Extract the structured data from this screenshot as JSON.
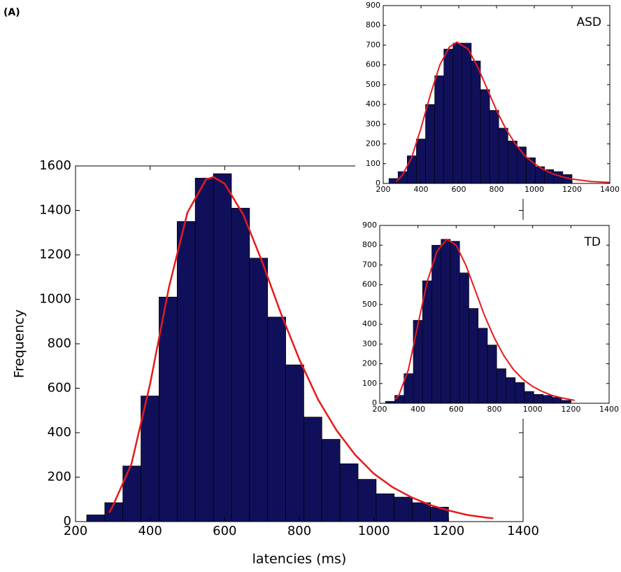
{
  "chart_data": [
    {
      "type": "histogram",
      "panel_label": "(A)",
      "xlabel": "latencies (ms)",
      "ylabel": "Frequency",
      "bins": [
        230,
        278.5,
        327,
        375.5,
        424,
        472.5,
        521,
        569.5,
        618,
        666.5,
        715,
        763.5,
        812,
        860.5,
        909,
        957.5,
        1006,
        1054.5,
        1103,
        1151.5,
        1200
      ],
      "values": [
        30,
        85,
        250,
        565,
        1010,
        1350,
        1545,
        1565,
        1410,
        1185,
        920,
        705,
        470,
        370,
        260,
        190,
        125,
        110,
        85,
        65
      ],
      "color": "#10105a",
      "fit": {
        "color": "#e8191c",
        "x": [
          290,
          300,
          350,
          400,
          450,
          500,
          550,
          570,
          600,
          650,
          700,
          750,
          800,
          850,
          900,
          950,
          1000,
          1050,
          1100,
          1150,
          1200,
          1250,
          1300,
          1320
        ],
        "values": [
          40,
          70,
          260,
          620,
          1050,
          1390,
          1540,
          1550,
          1520,
          1380,
          1170,
          940,
          730,
          550,
          410,
          300,
          215,
          155,
          110,
          75,
          50,
          30,
          18,
          15
        ]
      },
      "xlim": [
        200,
        1400
      ],
      "xticks": [
        200,
        400,
        600,
        800,
        1000,
        1200,
        1400
      ],
      "ylim": [
        0,
        1600
      ],
      "yticks": [
        0,
        200,
        400,
        600,
        800,
        1000,
        1200,
        1400,
        1600
      ]
    },
    {
      "type": "histogram",
      "annotation": "ASD",
      "bins": [
        230,
        278.5,
        327,
        375.5,
        424,
        472.5,
        521,
        569.5,
        618,
        666.5,
        715,
        763.5,
        812,
        860.5,
        909,
        957.5,
        1006,
        1054.5,
        1103,
        1151.5,
        1200
      ],
      "values": [
        25,
        60,
        140,
        225,
        400,
        545,
        680,
        710,
        710,
        620,
        475,
        370,
        280,
        215,
        185,
        130,
        85,
        70,
        60,
        45
      ],
      "color": "#10105a",
      "fit": {
        "color": "#e8191c",
        "x": [
          270,
          300,
          350,
          400,
          450,
          500,
          550,
          590,
          650,
          700,
          750,
          800,
          850,
          900,
          950,
          1000,
          1050,
          1100,
          1150,
          1200,
          1300,
          1400
        ],
        "values": [
          10,
          40,
          130,
          280,
          450,
          600,
          690,
          715,
          680,
          590,
          480,
          370,
          275,
          200,
          140,
          100,
          70,
          48,
          33,
          22,
          10,
          5
        ]
      },
      "xlim": [
        200,
        1400
      ],
      "xticks": [
        200,
        400,
        600,
        800,
        1000,
        1200,
        1400
      ],
      "ylim": [
        0,
        900
      ],
      "yticks": [
        0,
        100,
        200,
        300,
        400,
        500,
        600,
        700,
        800,
        900
      ]
    },
    {
      "type": "histogram",
      "annotation": "TD",
      "bins": [
        230,
        278.5,
        327,
        375.5,
        424,
        472.5,
        521,
        569.5,
        618,
        666.5,
        715,
        763.5,
        812,
        860.5,
        909,
        957.5,
        1006,
        1054.5,
        1103,
        1151.5,
        1200
      ],
      "values": [
        10,
        40,
        150,
        420,
        620,
        800,
        830,
        820,
        660,
        480,
        380,
        295,
        175,
        130,
        105,
        60,
        45,
        40,
        30,
        15
      ],
      "color": "#10105a",
      "fit": {
        "color": "#e8191c",
        "x": [
          280,
          300,
          350,
          400,
          450,
          500,
          550,
          600,
          650,
          700,
          750,
          800,
          850,
          900,
          950,
          1000,
          1050,
          1100,
          1150,
          1200,
          1220
        ],
        "values": [
          20,
          40,
          170,
          400,
          620,
          770,
          830,
          800,
          700,
          570,
          440,
          330,
          240,
          170,
          120,
          85,
          60,
          40,
          28,
          18,
          15
        ]
      },
      "xlim": [
        200,
        1400
      ],
      "xticks": [
        200,
        400,
        600,
        800,
        1000,
        1200,
        1400
      ],
      "ylim": [
        0,
        900
      ],
      "yticks": [
        0,
        100,
        200,
        300,
        400,
        500,
        600,
        700,
        800,
        900
      ]
    }
  ]
}
